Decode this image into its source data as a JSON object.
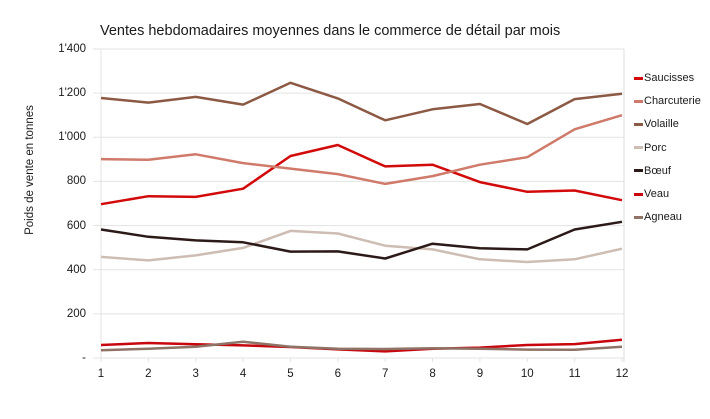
{
  "chart_data": {
    "type": "line",
    "title": "Ventes hebdomadaires moyennes dans le commerce de détail par mois",
    "xlabel": "",
    "ylabel": "Poids de vente en tonnes",
    "x": [
      1,
      2,
      3,
      4,
      5,
      6,
      7,
      8,
      9,
      10,
      11,
      12
    ],
    "ylim": [
      0,
      1400
    ],
    "yticks": [
      0,
      200,
      400,
      600,
      800,
      1000,
      1200,
      1400
    ],
    "ytick_labels": [
      "-",
      "200",
      "400",
      "600",
      "800",
      "1'000",
      "1'200",
      "1'400"
    ],
    "xtick_labels": [
      "1",
      "2",
      "3",
      "4",
      "5",
      "6",
      "7",
      "8",
      "9",
      "10",
      "11",
      "12"
    ],
    "grid": true,
    "legend_position": "right",
    "series": [
      {
        "name": "Saucisses",
        "color": "#d20a0a",
        "values": [
          697,
          733,
          730,
          767,
          915,
          965,
          868,
          876,
          797,
          753,
          759,
          715
        ]
      },
      {
        "name": "Charcuterie",
        "color": "#cf7a6a",
        "values": [
          901,
          898,
          923,
          883,
          858,
          833,
          789,
          824,
          876,
          910,
          1036,
          1100
        ]
      },
      {
        "name": "Volaille",
        "color": "#8c5a44",
        "values": [
          1178,
          1157,
          1183,
          1148,
          1247,
          1176,
          1077,
          1127,
          1151,
          1060,
          1173,
          1197
        ]
      },
      {
        "name": "Porc",
        "color": "#cdbdb3",
        "values": [
          458,
          442,
          465,
          499,
          576,
          564,
          509,
          492,
          447,
          435,
          447,
          495
        ]
      },
      {
        "name": "Bœuf",
        "color": "#2b1a17",
        "values": [
          582,
          549,
          533,
          524,
          482,
          483,
          451,
          518,
          497,
          492,
          582,
          617
        ]
      },
      {
        "name": "Veau",
        "color": "#c8060d",
        "values": [
          59,
          68,
          62,
          57,
          50,
          39,
          30,
          42,
          47,
          59,
          63,
          83
        ]
      },
      {
        "name": "Agneau",
        "color": "#8e7366",
        "values": [
          35,
          42,
          51,
          74,
          51,
          42,
          41,
          44,
          42,
          38,
          37,
          51
        ]
      }
    ]
  }
}
